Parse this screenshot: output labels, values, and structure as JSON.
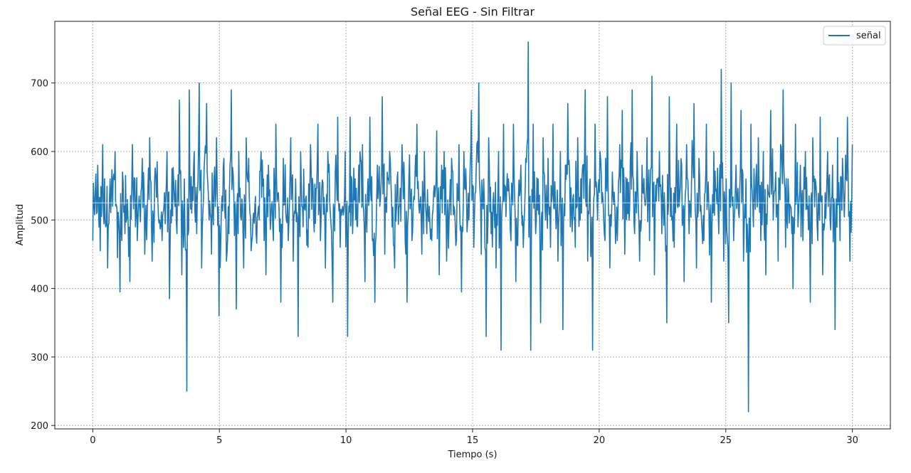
{
  "chart_data": {
    "type": "line",
    "title": "Señal EEG - Sin Filtrar",
    "xlabel": "Tiempo (s)",
    "ylabel": "Amplitud",
    "xlim": [
      -1.5,
      31.5
    ],
    "ylim": [
      195,
      790
    ],
    "xticks": [
      0,
      5,
      10,
      15,
      20,
      25,
      30
    ],
    "yticks": [
      200,
      300,
      400,
      500,
      600,
      700
    ],
    "grid": true,
    "legend_position": "top-right",
    "series": [
      {
        "name": "señal",
        "color": "#1f77b4",
        "x_start": 0,
        "x_end": 30,
        "baseline": 525,
        "values": [
          470,
          540,
          580,
          455,
          610,
          500,
          430,
          560,
          520,
          600,
          445,
          395,
          570,
          480,
          530,
          410,
          610,
          560,
          470,
          520,
          590,
          450,
          505,
          620,
          440,
          560,
          585,
          500,
          470,
          540,
          600,
          385,
          575,
          530,
          480,
          675,
          420,
          560,
          250,
          690,
          510,
          600,
          480,
          700,
          430,
          575,
          670,
          500,
          450,
          560,
          620,
          360,
          520,
          590,
          440,
          480,
          690,
          540,
          370,
          600,
          500,
          430,
          620,
          590,
          455,
          510,
          480,
          520,
          600,
          560,
          420,
          580,
          505,
          470,
          640,
          540,
          380,
          590,
          510,
          470,
          620,
          440,
          560,
          330,
          600,
          490,
          530,
          460,
          610,
          550,
          495,
          640,
          470,
          555,
          430,
          600,
          510,
          380,
          570,
          650,
          460,
          520,
          600,
          330,
          650,
          480,
          560,
          490,
          600,
          610,
          410,
          540,
          650,
          470,
          380,
          580,
          520,
          680,
          450,
          570,
          600,
          490,
          430,
          560,
          520,
          610,
          545,
          380,
          595,
          470,
          530,
          640,
          510,
          450,
          600,
          480,
          520,
          470,
          550,
          630,
          420,
          580,
          600,
          440,
          500,
          590,
          520,
          470,
          610,
          395,
          600,
          545,
          500,
          660,
          460,
          580,
          700,
          450,
          560,
          330,
          620,
          480,
          540,
          430,
          600,
          310,
          640,
          505,
          560,
          470,
          640,
          410,
          530,
          580,
          460,
          590,
          760,
          310,
          640,
          480,
          560,
          350,
          620,
          500,
          590,
          460,
          640,
          520,
          440,
          600,
          340,
          580,
          670,
          490,
          530,
          460,
          620,
          500,
          580,
          690,
          440,
          560,
          310,
          640,
          500,
          600,
          540,
          470,
          680,
          430,
          570,
          520,
          470,
          610,
          660,
          450,
          560,
          520,
          690,
          480,
          600,
          440,
          580,
          530,
          620,
          470,
          710,
          420,
          560,
          600,
          480,
          540,
          350,
          680,
          500,
          460,
          640,
          520,
          580,
          410,
          610,
          480,
          560,
          670,
          430,
          590,
          500,
          470,
          640,
          520,
          380,
          600,
          545,
          480,
          720,
          440,
          560,
          350,
          700,
          470,
          580,
          510,
          660,
          440,
          560,
          220,
          640,
          490,
          560,
          620,
          470,
          600,
          420,
          540,
          660,
          500,
          570,
          440,
          610,
          690,
          460,
          560,
          520,
          400,
          640,
          490,
          580,
          470,
          600,
          520,
          380,
          620,
          560,
          470,
          650,
          420,
          540,
          600,
          500,
          580,
          340,
          620,
          470,
          590,
          540,
          650,
          440,
          610
        ]
      }
    ]
  }
}
